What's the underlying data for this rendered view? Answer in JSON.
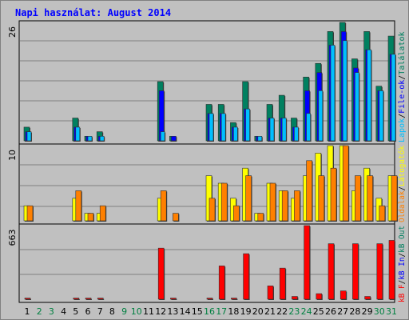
{
  "title": "Napi használat: August 2014",
  "colors": {
    "background": "#c0c0c0",
    "frame": "#808080",
    "grid": "#808080",
    "border": "#000000",
    "weekday": "#000000",
    "weekend": "#008040",
    "shadow": "#404040",
    "bar_outline": "#303030"
  },
  "chart_data": [
    {
      "type": "bar",
      "name": "top",
      "ymax_label": "26",
      "ylim": [
        0,
        26
      ],
      "categories": [
        "1",
        "2",
        "3",
        "4",
        "5",
        "6",
        "7",
        "8",
        "9",
        "10",
        "11",
        "12",
        "13",
        "14",
        "15",
        "16",
        "17",
        "18",
        "19",
        "20",
        "21",
        "22",
        "23",
        "24",
        "25",
        "26",
        "27",
        "28",
        "29",
        "30",
        "31"
      ],
      "series": [
        {
          "name": "Találatok",
          "color": "#008060",
          "values": [
            3,
            0,
            0,
            0,
            5,
            1,
            2,
            0,
            0,
            0,
            0,
            13,
            1,
            0,
            0,
            8,
            8,
            4,
            13,
            1,
            8,
            10,
            5,
            14,
            17,
            24,
            26,
            18,
            24,
            12,
            23
          ]
        },
        {
          "name": "File-ok",
          "color": "#0000ff",
          "values": [
            2,
            0,
            0,
            0,
            3,
            1,
            1,
            0,
            0,
            0,
            0,
            11,
            1,
            0,
            0,
            6,
            6,
            3,
            7,
            1,
            5,
            5,
            3,
            11,
            15,
            21,
            24,
            16,
            20,
            11,
            19
          ]
        },
        {
          "name": "Lapok",
          "color": "#00bfff",
          "values": [
            2,
            0,
            0,
            0,
            3,
            1,
            1,
            0,
            0,
            0,
            0,
            2,
            0,
            0,
            0,
            6,
            6,
            3,
            7,
            1,
            5,
            5,
            3,
            6,
            11,
            21,
            22,
            15,
            20,
            11,
            19
          ]
        }
      ],
      "legend": [
        "Találatok",
        "File-ok",
        "Lapok"
      ]
    },
    {
      "type": "bar",
      "name": "middle",
      "ymax_label": "10",
      "ylim": [
        0,
        10
      ],
      "categories": [
        "1",
        "2",
        "3",
        "4",
        "5",
        "6",
        "7",
        "8",
        "9",
        "10",
        "11",
        "12",
        "13",
        "14",
        "15",
        "16",
        "17",
        "18",
        "19",
        "20",
        "21",
        "22",
        "23",
        "24",
        "25",
        "26",
        "27",
        "28",
        "29",
        "30",
        "31"
      ],
      "series": [
        {
          "name": "Látogatók",
          "color": "#ffff00",
          "values": [
            2,
            0,
            0,
            0,
            3,
            1,
            1,
            0,
            0,
            0,
            0,
            3,
            0,
            0,
            0,
            6,
            5,
            3,
            7,
            1,
            5,
            4,
            3,
            6,
            9,
            10,
            10,
            4,
            7,
            3,
            6
          ]
        },
        {
          "name": "Oldalak",
          "color": "#ff8000",
          "values": [
            2,
            0,
            0,
            0,
            4,
            1,
            2,
            0,
            0,
            0,
            0,
            4,
            1,
            0,
            0,
            3,
            5,
            2,
            6,
            1,
            5,
            4,
            4,
            8,
            6,
            7,
            10,
            6,
            6,
            2,
            6
          ]
        }
      ],
      "legend": [
        "Látogatók",
        "Oldalak"
      ]
    },
    {
      "type": "bar",
      "name": "bottom",
      "ymax_label": "663",
      "ylim": [
        0,
        663
      ],
      "categories": [
        "1",
        "2",
        "3",
        "4",
        "5",
        "6",
        "7",
        "8",
        "9",
        "10",
        "11",
        "12",
        "13",
        "14",
        "15",
        "16",
        "17",
        "18",
        "19",
        "20",
        "21",
        "22",
        "23",
        "24",
        "25",
        "26",
        "27",
        "28",
        "29",
        "30",
        "31"
      ],
      "series": [
        {
          "name": "kB F",
          "color": "#ff0000",
          "values": [
            10,
            0,
            0,
            0,
            10,
            10,
            10,
            0,
            0,
            0,
            0,
            460,
            10,
            0,
            0,
            10,
            300,
            10,
            410,
            0,
            120,
            280,
            25,
            663,
            50,
            500,
            75,
            500,
            25,
            500,
            530
          ]
        }
      ],
      "legend": [
        "kB F",
        "kB In",
        "kB Out"
      ]
    }
  ],
  "right_labels": [
    {
      "text": "Találatok",
      "color": "#008060"
    },
    {
      "text": "File-ok",
      "color": "#0000ff"
    },
    {
      "text": "Lapok",
      "color": "#00bfff"
    },
    {
      "text": "Látogatók",
      "color": "#ffff00"
    },
    {
      "text": "Oldalak",
      "color": "#ff8000"
    },
    {
      "text": "kB Out",
      "color": "#008060"
    },
    {
      "text": "kB In",
      "color": "#0000ff"
    },
    {
      "text": "kB F",
      "color": "#ff0000"
    }
  ],
  "weekend_days": [
    2,
    3,
    9,
    10,
    16,
    17,
    23,
    24,
    30,
    31
  ]
}
